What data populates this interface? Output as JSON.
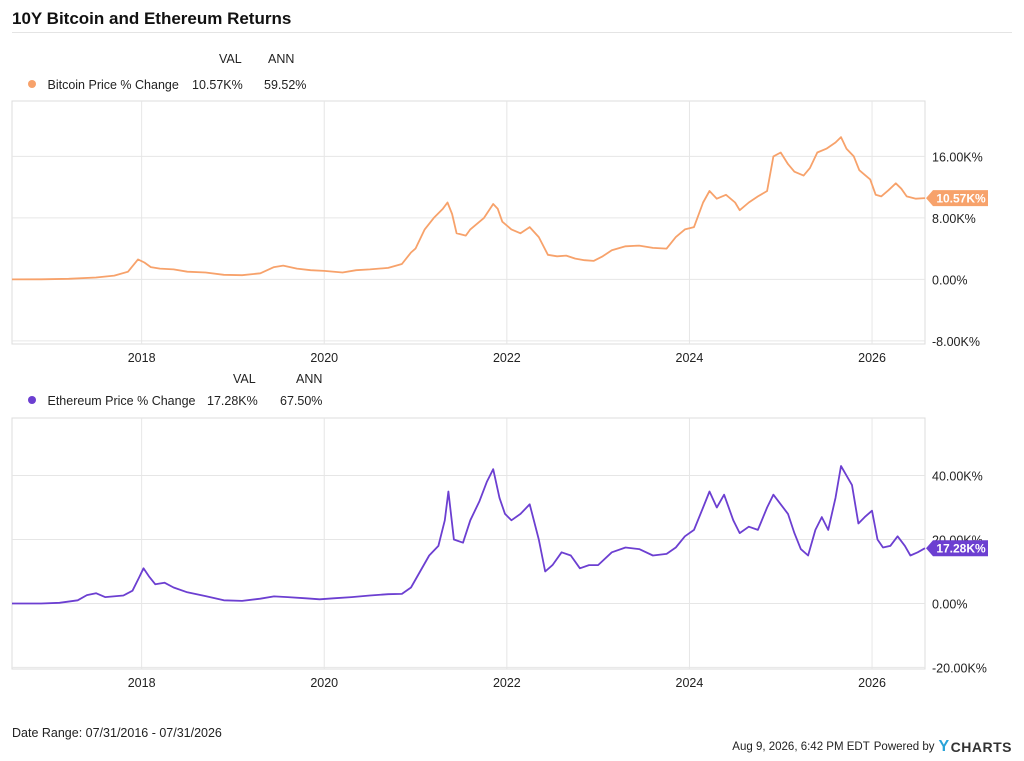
{
  "title": "10Y Bitcoin and Ethereum Returns",
  "legend_headers": {
    "val": "VAL",
    "ann": "ANN"
  },
  "footer": {
    "date_range": "Date Range: 07/31/2016 - 07/31/2026",
    "timestamp": "Aug 9, 2026, 6:42 PM EDT",
    "powered_by": "Powered by",
    "brand_y": "Y",
    "brand_rest": "CHARTS"
  },
  "chart_data": [
    {
      "type": "line",
      "series": [
        {
          "name": "Bitcoin Price % Change",
          "val": "10.57K%",
          "ann": "59.52%",
          "end_label": "10.57K%",
          "color": "#f7a26b",
          "points": [
            [
              2016.58,
              0
            ],
            [
              2016.9,
              20
            ],
            [
              2017.2,
              80
            ],
            [
              2017.5,
              250
            ],
            [
              2017.7,
              500
            ],
            [
              2017.85,
              1000
            ],
            [
              2017.96,
              2600
            ],
            [
              2018.03,
              2200
            ],
            [
              2018.1,
              1600
            ],
            [
              2018.2,
              1400
            ],
            [
              2018.35,
              1300
            ],
            [
              2018.5,
              1000
            ],
            [
              2018.7,
              900
            ],
            [
              2018.9,
              600
            ],
            [
              2019.1,
              550
            ],
            [
              2019.3,
              800
            ],
            [
              2019.45,
              1600
            ],
            [
              2019.55,
              1800
            ],
            [
              2019.7,
              1400
            ],
            [
              2019.85,
              1200
            ],
            [
              2020.0,
              1100
            ],
            [
              2020.2,
              900
            ],
            [
              2020.35,
              1200
            ],
            [
              2020.5,
              1300
            ],
            [
              2020.7,
              1500
            ],
            [
              2020.85,
              2000
            ],
            [
              2020.95,
              3500
            ],
            [
              2021.0,
              4000
            ],
            [
              2021.1,
              6500
            ],
            [
              2021.2,
              8000
            ],
            [
              2021.3,
              9200
            ],
            [
              2021.35,
              10000
            ],
            [
              2021.4,
              8500
            ],
            [
              2021.45,
              6000
            ],
            [
              2021.55,
              5700
            ],
            [
              2021.6,
              6500
            ],
            [
              2021.75,
              8000
            ],
            [
              2021.85,
              9800
            ],
            [
              2021.9,
              9200
            ],
            [
              2021.95,
              7500
            ],
            [
              2022.05,
              6500
            ],
            [
              2022.15,
              6000
            ],
            [
              2022.25,
              6800
            ],
            [
              2022.35,
              5500
            ],
            [
              2022.45,
              3200
            ],
            [
              2022.55,
              3000
            ],
            [
              2022.65,
              3100
            ],
            [
              2022.75,
              2700
            ],
            [
              2022.85,
              2500
            ],
            [
              2022.95,
              2400
            ],
            [
              2023.05,
              3000
            ],
            [
              2023.15,
              3800
            ],
            [
              2023.3,
              4300
            ],
            [
              2023.45,
              4400
            ],
            [
              2023.6,
              4100
            ],
            [
              2023.75,
              4000
            ],
            [
              2023.85,
              5500
            ],
            [
              2023.95,
              6500
            ],
            [
              2024.05,
              6800
            ],
            [
              2024.15,
              10000
            ],
            [
              2024.22,
              11500
            ],
            [
              2024.3,
              10500
            ],
            [
              2024.4,
              11000
            ],
            [
              2024.5,
              10000
            ],
            [
              2024.55,
              9000
            ],
            [
              2024.65,
              10000
            ],
            [
              2024.75,
              10800
            ],
            [
              2024.85,
              11500
            ],
            [
              2024.92,
              16000
            ],
            [
              2025.0,
              16500
            ],
            [
              2025.08,
              15000
            ],
            [
              2025.15,
              14000
            ],
            [
              2025.25,
              13500
            ],
            [
              2025.32,
              14500
            ],
            [
              2025.4,
              16500
            ],
            [
              2025.5,
              17000
            ],
            [
              2025.6,
              17800
            ],
            [
              2025.66,
              18500
            ],
            [
              2025.72,
              17000
            ],
            [
              2025.8,
              16000
            ],
            [
              2025.86,
              14200
            ],
            [
              2025.92,
              13600
            ],
            [
              2025.98,
              13000
            ],
            [
              2026.04,
              11000
            ],
            [
              2026.1,
              10800
            ],
            [
              2026.18,
              11600
            ],
            [
              2026.26,
              12500
            ],
            [
              2026.32,
              11800
            ],
            [
              2026.38,
              10800
            ],
            [
              2026.48,
              10500
            ],
            [
              2026.58,
              10570
            ]
          ]
        }
      ],
      "x_ticks": [
        "2018",
        "2020",
        "2022",
        "2024",
        "2026"
      ],
      "x_tick_values": [
        2018,
        2020,
        2022,
        2024,
        2026
      ],
      "y_ticks": [
        "16.00K%",
        "8.00K%",
        "0.00%",
        "-8.00K%"
      ],
      "y_tick_values": [
        16000,
        8000,
        0,
        -8000
      ],
      "xlim": [
        2016.58,
        2026.58
      ],
      "ylim": [
        -8400,
        23200
      ],
      "grid": true
    },
    {
      "type": "line",
      "series": [
        {
          "name": "Ethereum Price % Change",
          "val": "17.28K%",
          "ann": "67.50%",
          "end_label": "17.28K%",
          "color": "#6c3fd1",
          "points": [
            [
              2016.58,
              0
            ],
            [
              2016.9,
              0
            ],
            [
              2017.1,
              200
            ],
            [
              2017.3,
              1000
            ],
            [
              2017.4,
              2600
            ],
            [
              2017.5,
              3200
            ],
            [
              2017.6,
              2000
            ],
            [
              2017.8,
              2500
            ],
            [
              2017.9,
              4000
            ],
            [
              2017.97,
              8000
            ],
            [
              2018.02,
              11000
            ],
            [
              2018.08,
              8500
            ],
            [
              2018.15,
              6000
            ],
            [
              2018.25,
              6500
            ],
            [
              2018.35,
              5000
            ],
            [
              2018.5,
              3500
            ],
            [
              2018.7,
              2300
            ],
            [
              2018.9,
              1000
            ],
            [
              2019.1,
              800
            ],
            [
              2019.3,
              1500
            ],
            [
              2019.45,
              2200
            ],
            [
              2019.6,
              2000
            ],
            [
              2019.8,
              1600
            ],
            [
              2019.95,
              1300
            ],
            [
              2020.1,
              1600
            ],
            [
              2020.3,
              2000
            ],
            [
              2020.5,
              2500
            ],
            [
              2020.7,
              2900
            ],
            [
              2020.85,
              3000
            ],
            [
              2020.95,
              5000
            ],
            [
              2021.05,
              10000
            ],
            [
              2021.15,
              15000
            ],
            [
              2021.25,
              18000
            ],
            [
              2021.32,
              26000
            ],
            [
              2021.36,
              35000
            ],
            [
              2021.42,
              20000
            ],
            [
              2021.52,
              19000
            ],
            [
              2021.6,
              26000
            ],
            [
              2021.7,
              32000
            ],
            [
              2021.78,
              38000
            ],
            [
              2021.85,
              42000
            ],
            [
              2021.92,
              33000
            ],
            [
              2021.98,
              28000
            ],
            [
              2022.05,
              26000
            ],
            [
              2022.15,
              28000
            ],
            [
              2022.25,
              31000
            ],
            [
              2022.35,
              20000
            ],
            [
              2022.42,
              10000
            ],
            [
              2022.5,
              12000
            ],
            [
              2022.6,
              16000
            ],
            [
              2022.7,
              15000
            ],
            [
              2022.8,
              11000
            ],
            [
              2022.9,
              12000
            ],
            [
              2023.0,
              12000
            ],
            [
              2023.15,
              16000
            ],
            [
              2023.3,
              17500
            ],
            [
              2023.45,
              17000
            ],
            [
              2023.6,
              15000
            ],
            [
              2023.75,
              15500
            ],
            [
              2023.85,
              17500
            ],
            [
              2023.95,
              21000
            ],
            [
              2024.05,
              23000
            ],
            [
              2024.15,
              30000
            ],
            [
              2024.22,
              35000
            ],
            [
              2024.3,
              30000
            ],
            [
              2024.38,
              34000
            ],
            [
              2024.48,
              26000
            ],
            [
              2024.55,
              22000
            ],
            [
              2024.65,
              24000
            ],
            [
              2024.75,
              23000
            ],
            [
              2024.85,
              30000
            ],
            [
              2024.92,
              34000
            ],
            [
              2025.0,
              31000
            ],
            [
              2025.08,
              28000
            ],
            [
              2025.15,
              22000
            ],
            [
              2025.22,
              17000
            ],
            [
              2025.3,
              15000
            ],
            [
              2025.38,
              23000
            ],
            [
              2025.45,
              27000
            ],
            [
              2025.52,
              23000
            ],
            [
              2025.6,
              33000
            ],
            [
              2025.66,
              43000
            ],
            [
              2025.72,
              40000
            ],
            [
              2025.78,
              37000
            ],
            [
              2025.85,
              25000
            ],
            [
              2025.92,
              27000
            ],
            [
              2026.0,
              29000
            ],
            [
              2026.06,
              20000
            ],
            [
              2026.12,
              17500
            ],
            [
              2026.2,
              18000
            ],
            [
              2026.28,
              21000
            ],
            [
              2026.36,
              18000
            ],
            [
              2026.42,
              15000
            ],
            [
              2026.5,
              16000
            ],
            [
              2026.58,
              17280
            ]
          ]
        }
      ],
      "x_ticks": [
        "2018",
        "2020",
        "2022",
        "2024",
        "2026"
      ],
      "x_tick_values": [
        2018,
        2020,
        2022,
        2024,
        2026
      ],
      "y_ticks": [
        "40.00K%",
        "20.00K%",
        "0.00%",
        "-20.00K%"
      ],
      "y_tick_values": [
        40000,
        20000,
        0,
        -20000
      ],
      "xlim": [
        2016.58,
        2026.58
      ],
      "ylim": [
        -20500,
        58000
      ],
      "grid": true
    }
  ]
}
